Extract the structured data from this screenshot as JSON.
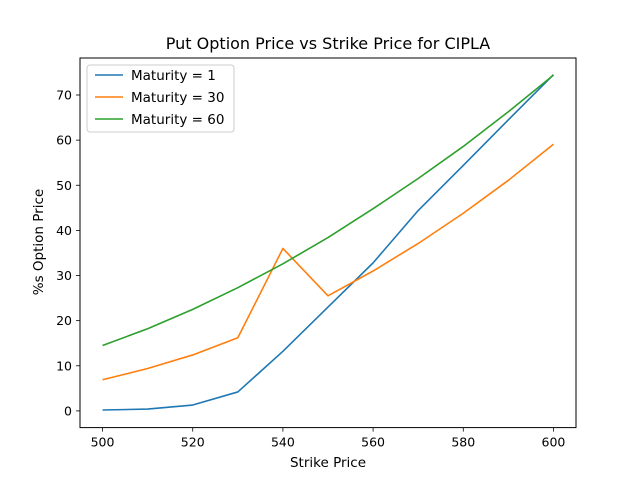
{
  "chart_data": {
    "type": "line",
    "title": "Put Option Price vs Strike Price for CIPLA",
    "xlabel": "Strike Price",
    "ylabel": "%s Option Price",
    "x": [
      500,
      510,
      520,
      530,
      540,
      550,
      560,
      570,
      580,
      590,
      600
    ],
    "xlim": [
      495,
      605
    ],
    "ylim": [
      -3.7,
      78.2
    ],
    "xticks": [
      500,
      520,
      540,
      560,
      580,
      600
    ],
    "yticks": [
      0,
      10,
      20,
      30,
      40,
      50,
      60,
      70
    ],
    "grid": false,
    "legend_position": "top-left",
    "series": [
      {
        "name": "Maturity = 1",
        "color": "#1f77b4",
        "values": [
          0.2,
          0.4,
          1.3,
          4.2,
          13.2,
          23.0,
          32.8,
          44.4,
          54.4,
          64.5,
          74.5
        ]
      },
      {
        "name": "Maturity = 30",
        "color": "#ff7f0e",
        "values": [
          6.9,
          9.4,
          12.4,
          16.2,
          36.0,
          25.5,
          31.0,
          37.1,
          43.8,
          51.1,
          59.1
        ]
      },
      {
        "name": "Maturity = 60",
        "color": "#2ca02c",
        "values": [
          14.5,
          18.2,
          22.5,
          27.3,
          32.6,
          38.4,
          44.8,
          51.5,
          58.6,
          66.3,
          74.4
        ]
      }
    ]
  }
}
